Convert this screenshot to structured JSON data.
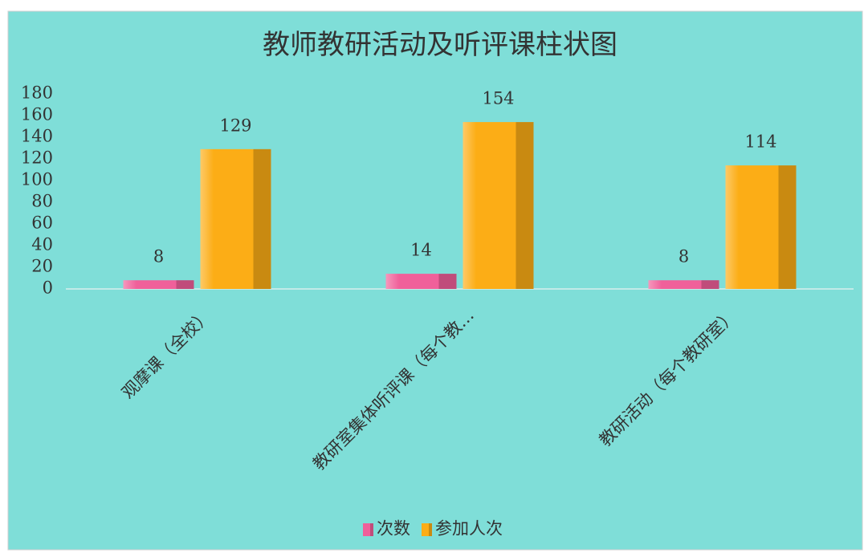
{
  "chart_data": {
    "type": "bar",
    "title": "教师教研活动及听评课柱状图",
    "categories": [
      "观摩课（全校）",
      "教研室集体听评课（每个教…",
      "教研活动（每个教研室）"
    ],
    "series": [
      {
        "name": "次数",
        "color": "#f0609a",
        "values": [
          8,
          14,
          8
        ]
      },
      {
        "name": "参加人次",
        "color": "#fcad16",
        "values": [
          129,
          154,
          114
        ]
      }
    ],
    "ylim": [
      0,
      180
    ],
    "yticks": [
      0,
      20,
      40,
      60,
      80,
      100,
      120,
      140,
      160,
      180
    ],
    "grid": false,
    "legend": "bottom"
  }
}
